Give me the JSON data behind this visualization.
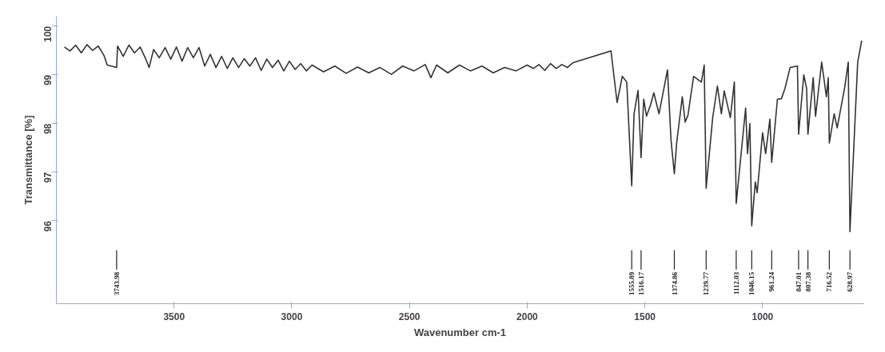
{
  "chart_data": {
    "type": "line",
    "xlabel": "Wavenumber cm-1",
    "ylabel": "Transmittance [%]",
    "xlim": [
      4000,
      570
    ],
    "ylim": [
      94.3,
      100.2
    ],
    "xticks": [
      3500,
      3000,
      2500,
      2000,
      1500,
      1000
    ],
    "yticks": [
      96,
      97,
      98,
      99,
      100
    ],
    "grid": false,
    "marker": "none",
    "line_style": "solid",
    "series": [
      {
        "color": "#333333",
        "x": [
          3966,
          3942,
          3918,
          3894,
          3870,
          3846,
          3822,
          3798,
          3784,
          3743.98,
          3740,
          3716,
          3692,
          3668,
          3644,
          3620,
          3606,
          3587,
          3563,
          3538,
          3514,
          3490,
          3466,
          3442,
          3418,
          3394,
          3370,
          3346,
          3322,
          3298,
          3274,
          3250,
          3226,
          3202,
          3178,
          3154,
          3130,
          3106,
          3082,
          3058,
          3034,
          3010,
          2986,
          2962,
          2938,
          2914,
          2865,
          2817,
          2769,
          2721,
          2673,
          2625,
          2577,
          2529,
          2481,
          2433,
          2409,
          2385,
          2337,
          2288,
          2240,
          2192,
          2144,
          2096,
          2048,
          2000,
          1974,
          1950,
          1925,
          1901,
          1877,
          1853,
          1829,
          1805,
          1644,
          1618,
          1596,
          1577,
          1555.89,
          1546,
          1529,
          1516.17,
          1505,
          1493,
          1476,
          1462,
          1440,
          1404,
          1389,
          1374.86,
          1365,
          1341,
          1329,
          1317,
          1293,
          1260,
          1248,
          1239.77,
          1212,
          1192,
          1175,
          1163,
          1137,
          1120,
          1112.03,
          1072,
          1064,
          1054,
          1046.15,
          1031,
          1023,
          1000,
          987,
          969,
          961.24,
          937,
          920,
          905,
          883,
          852,
          847.01,
          825,
          813,
          807.38,
          785,
          775,
          749,
          729,
          721,
          716.52,
          696,
          683,
          652,
          636,
          628.97,
          596,
          579
        ],
        "values": [
          99.57,
          99.49,
          99.61,
          99.45,
          99.62,
          99.5,
          99.59,
          99.4,
          99.2,
          99.15,
          99.59,
          99.38,
          99.61,
          99.45,
          99.57,
          99.32,
          99.15,
          99.52,
          99.35,
          99.56,
          99.32,
          99.57,
          99.28,
          99.56,
          99.35,
          99.56,
          99.18,
          99.42,
          99.15,
          99.38,
          99.13,
          99.35,
          99.15,
          99.33,
          99.18,
          99.35,
          99.09,
          99.32,
          99.15,
          99.3,
          99.08,
          99.28,
          99.11,
          99.23,
          99.08,
          99.2,
          99.06,
          99.18,
          99.03,
          99.16,
          99.04,
          99.15,
          99.01,
          99.18,
          99.08,
          99.21,
          98.94,
          99.2,
          99.04,
          99.2,
          99.08,
          99.18,
          99.04,
          99.15,
          99.08,
          99.2,
          99.13,
          99.21,
          99.09,
          99.23,
          99.13,
          99.21,
          99.15,
          99.25,
          99.49,
          98.43,
          98.97,
          98.85,
          96.72,
          98.2,
          98.68,
          97.3,
          98.5,
          98.15,
          98.38,
          98.63,
          98.2,
          99.1,
          97.66,
          96.97,
          97.6,
          98.55,
          98.03,
          98.17,
          98.97,
          98.85,
          99.2,
          96.67,
          98.12,
          98.77,
          98.2,
          98.67,
          98.12,
          98.85,
          96.36,
          98.32,
          97.38,
          98.0,
          95.9,
          96.8,
          96.58,
          97.81,
          97.38,
          98.09,
          97.2,
          98.5,
          98.51,
          98.72,
          99.15,
          99.18,
          97.78,
          99.0,
          98.72,
          97.78,
          98.94,
          98.15,
          99.26,
          98.55,
          98.94,
          97.6,
          98.2,
          97.91,
          98.72,
          99.26,
          95.78,
          99.26,
          99.7
        ]
      }
    ],
    "annotations": [
      {
        "text": "3743.98",
        "x": 3743.98
      },
      {
        "text": "1555.89",
        "x": 1555.89
      },
      {
        "text": "1516.17",
        "x": 1516.17
      },
      {
        "text": "1374.86",
        "x": 1374.86
      },
      {
        "text": "1239.77",
        "x": 1239.77
      },
      {
        "text": "1112.03",
        "x": 1112.03
      },
      {
        "text": "1046.15",
        "x": 1046.15
      },
      {
        "text": "961.24",
        "x": 961.24
      },
      {
        "text": "847.01",
        "x": 847.01
      },
      {
        "text": "807.38",
        "x": 807.38
      },
      {
        "text": "716.52",
        "x": 716.52
      },
      {
        "text": "628.97",
        "x": 628.97
      }
    ]
  }
}
